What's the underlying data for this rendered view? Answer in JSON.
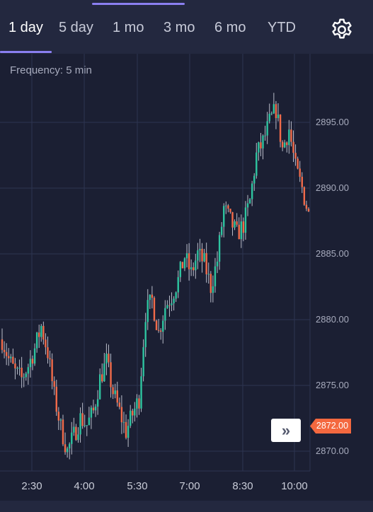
{
  "tabs": [
    {
      "label": "1 day",
      "active": true
    },
    {
      "label": "5 day",
      "active": false
    },
    {
      "label": "1 mo",
      "active": false
    },
    {
      "label": "3 mo",
      "active": false
    },
    {
      "label": "6 mo",
      "active": false
    },
    {
      "label": "YTD",
      "active": false
    }
  ],
  "settings_icon": "gear-icon",
  "frequency_label": "Frequency: 5 min",
  "scroll_button_glyph": "»",
  "colors": {
    "background": "#1b1f33",
    "toolbar": "#23283f",
    "accent": "#8a7ff0",
    "up": "#2ec4a0",
    "down": "#f26b4a",
    "grid": "#2e3450",
    "axis_text": "#a7abbd",
    "price_tag": "#f4683f"
  },
  "chart_data": {
    "type": "candlestick",
    "y_ticks": [
      "2895.00",
      "2890.00",
      "2885.00",
      "2880.00",
      "2875.00",
      "2870.00"
    ],
    "y_tick_values": [
      2895,
      2890,
      2885,
      2880,
      2875,
      2870
    ],
    "x_ticks": [
      "2:30",
      "4:00",
      "5:30",
      "7:00",
      "8:30",
      "10:00"
    ],
    "current_price": "2872.00",
    "ylim": [
      2868.5,
      2897.0
    ],
    "grid": true,
    "series": [
      {
        "name": "",
        "approx_closes": [
          2878.5,
          2877.0,
          2876.0,
          2875.5,
          2876.5,
          2877.8,
          2879.5,
          2877.5,
          2874.2,
          2871.8,
          2870.0,
          2871.2,
          2872.5,
          2872.0,
          2873.0,
          2875.5,
          2876.8,
          2874.5,
          2873.0,
          2871.5,
          2872.8,
          2874.0,
          2880.5,
          2881.5,
          2879.0,
          2881.0,
          2881.8,
          2883.0,
          2884.8,
          2883.5,
          2885.0,
          2884.3,
          2882.5,
          2884.5,
          2888.5,
          2887.5,
          2886.5,
          2887.2,
          2889.0,
          2892.5,
          2893.5,
          2895.0,
          2896.0,
          2893.0,
          2894.5,
          2891.5,
          2890.0,
          2888.0
        ]
      }
    ]
  }
}
